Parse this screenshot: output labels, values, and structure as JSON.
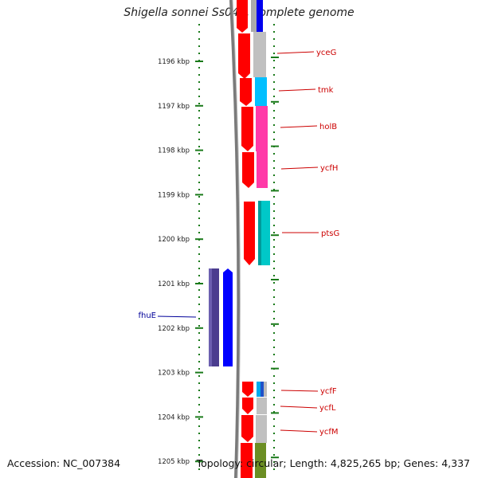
{
  "title": "Shigella sonnei Ss046, complete genome",
  "footer": {
    "accession": "Accession: NC_007384",
    "topology": "Topology: circular; Length: 4,825,265 bp; Genes: 4,337"
  },
  "colors": {
    "backbone": "#7a7a7a",
    "tick": "#1a7a1a",
    "forward_label": "#cc0000",
    "reverse_label": "#000099",
    "cds_forward": "#ff0000",
    "cds_reverse": "#0000ff",
    "cds_reverse_dark": "#4b3d8f"
  },
  "map": {
    "kbp_labels": [
      "1196 kbp",
      "1197 kbp",
      "1198 kbp",
      "1199 kbp",
      "1200 kbp",
      "1201 kbp",
      "1202 kbp",
      "1203 kbp",
      "1204 kbp",
      "1205 kbp"
    ],
    "forward_genes": [
      "yceG",
      "tmk",
      "holB",
      "ycfH",
      "ptsG",
      "ycfF",
      "ycfL",
      "ycfM"
    ],
    "reverse_genes": [
      "fhuE"
    ]
  }
}
